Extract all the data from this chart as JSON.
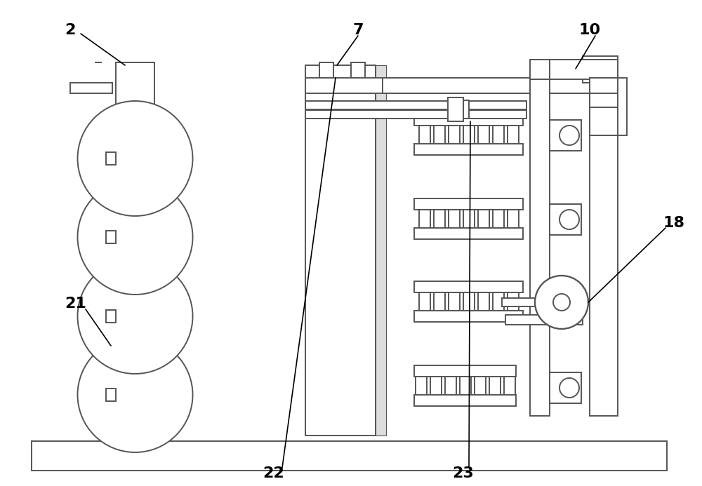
{
  "bg_color": "#ffffff",
  "line_color": "#555555",
  "lw": 1.4,
  "label_fontsize": 16,
  "figw": 10.0,
  "figh": 6.93
}
